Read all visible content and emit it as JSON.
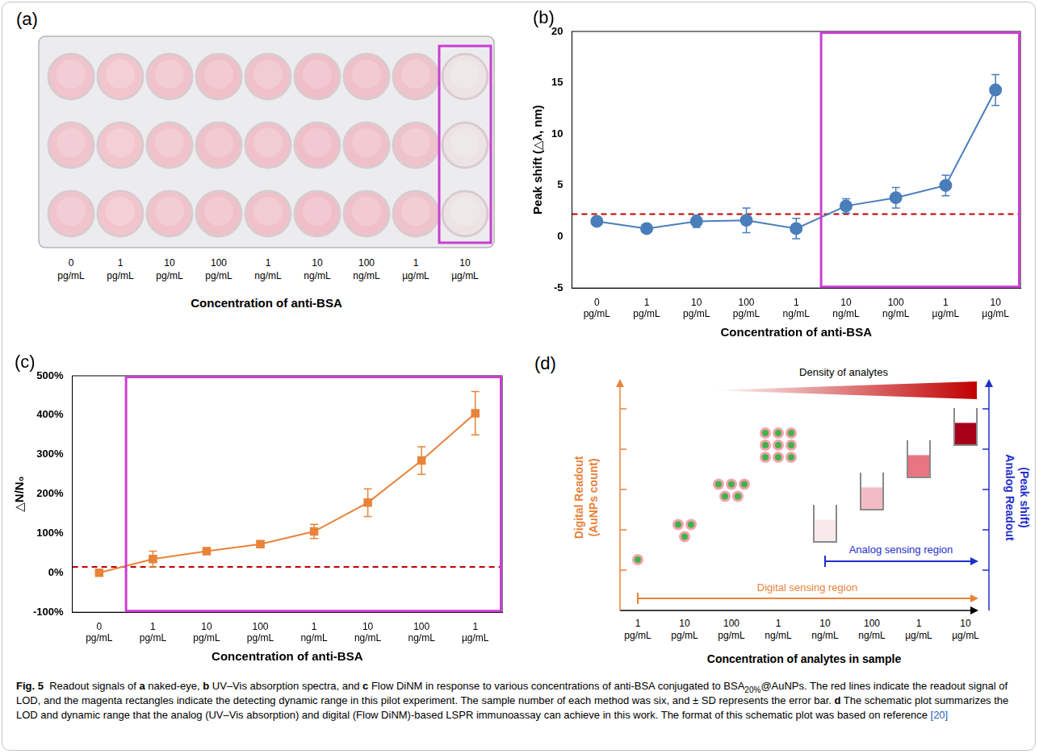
{
  "panel_a": {
    "panel": "(a)",
    "type": "plate",
    "rows": 3,
    "categories": [
      "0 pg/mL",
      "1 pg/mL",
      "10 pg/mL",
      "100 pg/mL",
      "1 ng/mL",
      "10 ng/mL",
      "100 ng/mL",
      "1 µg/mL",
      "10 µg/mL"
    ],
    "colors": [
      "#f1c3cc",
      "#f2c5cd",
      "#f1c2cb",
      "#f0c0c9",
      "#f0c1ca",
      "#efbec8",
      "#efc0c9",
      "#efc3cb",
      "#ece3e4"
    ],
    "highlight": {
      "from": "10 µg/mL",
      "to": "10 µg/mL",
      "color": "#c93fd0"
    },
    "x_label": "Concentration of anti-BSA"
  },
  "chart_data": [
    {
      "panel": "(b)",
      "type": "line",
      "categories": [
        "0 pg/mL",
        "1 pg/mL",
        "10 pg/mL",
        "100 pg/mL",
        "1 ng/mL",
        "10 ng/mL",
        "100 ng/mL",
        "1 µg/mL",
        "10 µg/mL"
      ],
      "values": [
        1.5,
        0.8,
        1.5,
        1.6,
        0.8,
        3.0,
        3.8,
        5.0,
        14.3
      ],
      "errors": [
        0.4,
        0.3,
        0.6,
        1.2,
        1.0,
        0.7,
        1.0,
        1.0,
        1.5
      ],
      "color": "#4a7ebb",
      "marker": "circle",
      "lod_line": 2.2,
      "lod_color": "#c00000",
      "highlight": {
        "from": "10 ng/mL",
        "to": "10 µg/mL",
        "color": "#c93fd0"
      },
      "x_label": "Concentration of anti-BSA",
      "y_label": "Peak shift (△λ, nm)",
      "ylim": [
        -5,
        20
      ],
      "yticks": [
        -5,
        0,
        5,
        10,
        15,
        20
      ],
      "grid": false
    },
    {
      "panel": "(c)",
      "type": "line",
      "categories": [
        "0 pg/mL",
        "1 pg/mL",
        "10 pg/mL",
        "100 pg/mL",
        "1 ng/mL",
        "10 ng/mL",
        "100 ng/mL",
        "1 µg/mL"
      ],
      "values": [
        0,
        35,
        55,
        73,
        105,
        178,
        285,
        405
      ],
      "errors": [
        5,
        20,
        8,
        8,
        18,
        35,
        35,
        55
      ],
      "color": "#e8833a",
      "marker": "square",
      "lod_line": 15,
      "lod_color": "#c00000",
      "highlight": {
        "from": "1 pg/mL",
        "to": "1 µg/mL",
        "color": "#c93fd0"
      },
      "x_label": "Concentration of anti-BSA",
      "y_label": "△N/N₀",
      "ylim": [
        -100,
        500
      ],
      "yticks": [
        {
          "value": -100,
          "label": "-100%"
        },
        {
          "value": 0,
          "label": "0%"
        },
        {
          "value": 100,
          "label": "100%"
        },
        {
          "value": 200,
          "label": "200%"
        },
        {
          "value": 300,
          "label": "300%"
        },
        {
          "value": 400,
          "label": "400%"
        },
        {
          "value": 500,
          "label": "500%"
        }
      ],
      "grid": false
    }
  ],
  "panel_d": {
    "panel": "(d)",
    "type": "schematic",
    "categories": [
      "1 pg/mL",
      "10 pg/mL",
      "100 pg/mL",
      "1 ng/mL",
      "10 ng/mL",
      "100 ng/mL",
      "1 µg/mL",
      "10 µg/mL"
    ],
    "x_label": "Concentration of analytes in sample",
    "gradient_label": "Density of analytes",
    "gradient_color": "#c00000",
    "left_axis_label": "Digital Readout (AuNPs count)",
    "left_color": "#e8833a",
    "right_axis_label": "Analog Readout (Peak shift)",
    "right_color": "#1f2fcc",
    "digital_region": {
      "label": "Digital sensing region",
      "from": "1 pg/mL",
      "to": "10 µg/mL"
    },
    "analog_region": {
      "label": "Analog sensing region",
      "from": "10 ng/mL",
      "to": "10 µg/mL"
    },
    "particles": {
      "categories": [
        "1 pg/mL",
        "10 pg/mL",
        "100 pg/mL",
        "1 ng/mL"
      ],
      "counts": [
        1,
        3,
        5,
        9
      ]
    },
    "beakers": {
      "categories": [
        "10 ng/mL",
        "100 ng/mL",
        "1 µg/mL",
        "10 µg/mL"
      ],
      "colors": [
        "#f8e9eb",
        "#f3bcc4",
        "#e97482",
        "#a8001a"
      ]
    }
  },
  "caption": [
    {
      "text": "Fig. 5",
      "bold": true
    },
    {
      "text": "  Readout signals of "
    },
    {
      "text": "a",
      "bold": true
    },
    {
      "text": " naked-eye, "
    },
    {
      "text": "b",
      "bold": true
    },
    {
      "text": " UV–Vis absorption spectra, and "
    },
    {
      "text": "c",
      "bold": true
    },
    {
      "text": " Flow DiNM in response to various concentrations of anti-BSA conjugated to BSA"
    },
    {
      "text": "20%",
      "sub": true
    },
    {
      "text": "@AuNPs. The red lines indicate the readout signal of LOD, and the magenta rectangles indicate the detecting dynamic range in this pilot experiment. The sample number of each method was six, and ± SD represents the error bar. "
    },
    {
      "text": "d",
      "bold": true
    },
    {
      "text": " The schematic plot summarizes the LOD and dynamic range that the analog (UV–Vis absorption) and digital (Flow DiNM)-based LSPR immunoassay can achieve in this work. The format of this schematic plot was based on reference "
    },
    {
      "text": "[20]",
      "color": "#1f5fbf"
    }
  ]
}
